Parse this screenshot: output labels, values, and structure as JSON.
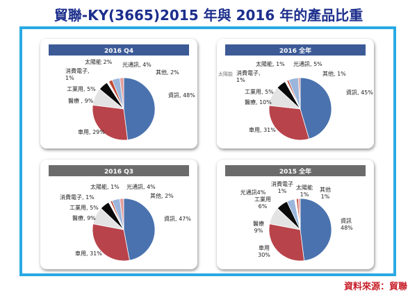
{
  "title": "貿聯-KY(3665)2015 年與 2016 年的產品比重",
  "source": "資料來源：貿聯",
  "colors": {
    "frame": "#29a9e3",
    "title": "#1c2e8c",
    "source": "#c8202a",
    "header_2016": "#3c5a96",
    "header_other": "#6b6b6b"
  },
  "chart_data": [
    {
      "type": "pie",
      "title": "2016 Q4",
      "categories": [
        "資訊",
        "車用",
        "醫療",
        "工業用",
        "消費電子",
        "太陽能",
        "光通訊",
        "其他"
      ],
      "values": [
        48,
        29,
        9,
        5,
        1,
        2,
        4,
        2
      ],
      "labels": [
        "資訊, 48%",
        "車用, 29%",
        "醫療 , 9%",
        "工業用, 5%",
        "消費電子,\n1%",
        "太陽能 2%",
        "光通訊, 4%",
        "其他, 2%"
      ],
      "colors": [
        "#4a72ae",
        "#b8434a",
        "#e3e3e3",
        "#0a0a0a",
        "#ffffff",
        "#c04a36",
        "#9ab6dc",
        "#e49d9d"
      ]
    },
    {
      "type": "pie",
      "title": "2016 全年",
      "categories": [
        "資訊",
        "車用",
        "醫療",
        "工業用",
        "消費電子",
        "太陽能",
        "光通訊",
        "其他"
      ],
      "values": [
        45,
        31,
        10,
        5,
        1,
        1,
        5,
        1
      ],
      "labels": [
        "資訊, 45%",
        "車用, 31%",
        "醫療, 10%",
        "工業用, 5%",
        "消費電子,\n1%",
        "太陽能, 1%",
        "光通訊, 5%",
        "其他, 1%"
      ],
      "extra_text": "太陽能",
      "colors": [
        "#4a72ae",
        "#b8434a",
        "#e3e3e3",
        "#0a0a0a",
        "#ffffff",
        "#c04a36",
        "#9ab6dc",
        "#e49d9d"
      ]
    },
    {
      "type": "pie",
      "title": "2016 Q3",
      "categories": [
        "資訊",
        "車用",
        "醫療",
        "工業用",
        "消費電子",
        "太陽能",
        "光通訊",
        "其他"
      ],
      "values": [
        47,
        31,
        9,
        5,
        1,
        1,
        4,
        2
      ],
      "labels": [
        "資訊, 47%",
        "車用, 31%",
        "醫療, 9%",
        "工業用, 5%",
        "消費電子, 1%",
        "太陽能, 1%",
        "光通訊, 4%",
        "其他, 2%"
      ],
      "colors": [
        "#4a72ae",
        "#b8434a",
        "#e3e3e3",
        "#0a0a0a",
        "#ffffff",
        "#c04a36",
        "#9ab6dc",
        "#e49d9d"
      ]
    },
    {
      "type": "pie",
      "title": "2015 全年",
      "categories": [
        "資訊",
        "車用",
        "醫療",
        "工業用",
        "光通訊",
        "消費電子",
        "太陽能",
        "其他"
      ],
      "values": [
        48,
        30,
        9,
        6,
        4,
        1,
        1,
        1
      ],
      "labels": [
        "資訊\n48%",
        "車用\n30%",
        "醫療\n9%",
        "工業用\n6%",
        "光通訊4%",
        "消費電子\n1%",
        "太陽能\n1%",
        "其他\n1%"
      ],
      "colors": [
        "#4a72ae",
        "#b8434a",
        "#e3e3e3",
        "#0a0a0a",
        "#9ab6dc",
        "#ffffff",
        "#c04a36",
        "#e49d9d"
      ]
    }
  ]
}
